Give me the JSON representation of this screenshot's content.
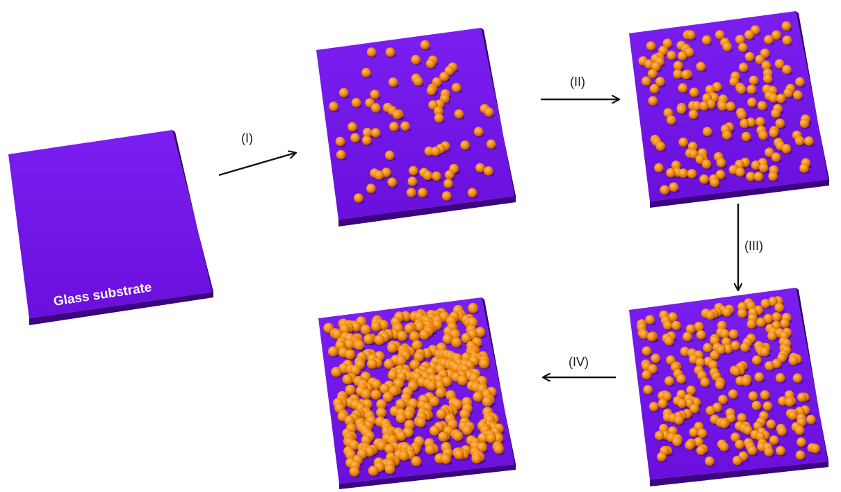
{
  "substrate": {
    "caption": "Glass substrate"
  },
  "steps": [
    {
      "id": "I",
      "label": "(I)"
    },
    {
      "id": "II",
      "label": "(II)"
    },
    {
      "id": "III",
      "label": "(III)"
    },
    {
      "id": "IV",
      "label": "(IV)"
    }
  ],
  "stages": [
    {
      "name": "bare-substrate",
      "particles": 0
    },
    {
      "name": "after-step-1",
      "particles": 75
    },
    {
      "name": "after-step-2",
      "particles": 150
    },
    {
      "name": "after-step-3",
      "particles": 230
    },
    {
      "name": "after-step-4",
      "particles": 420
    }
  ],
  "colors": {
    "plate_top": "#6a0fdc",
    "plate_top_light": "#7a1ff0",
    "plate_side": "#3c0480",
    "plate_side_right": "#2e0366",
    "particle": "#f08a10",
    "particle_highlight": "#ffc060",
    "particle_shadow": "#a85200",
    "arrow": "#111111"
  }
}
